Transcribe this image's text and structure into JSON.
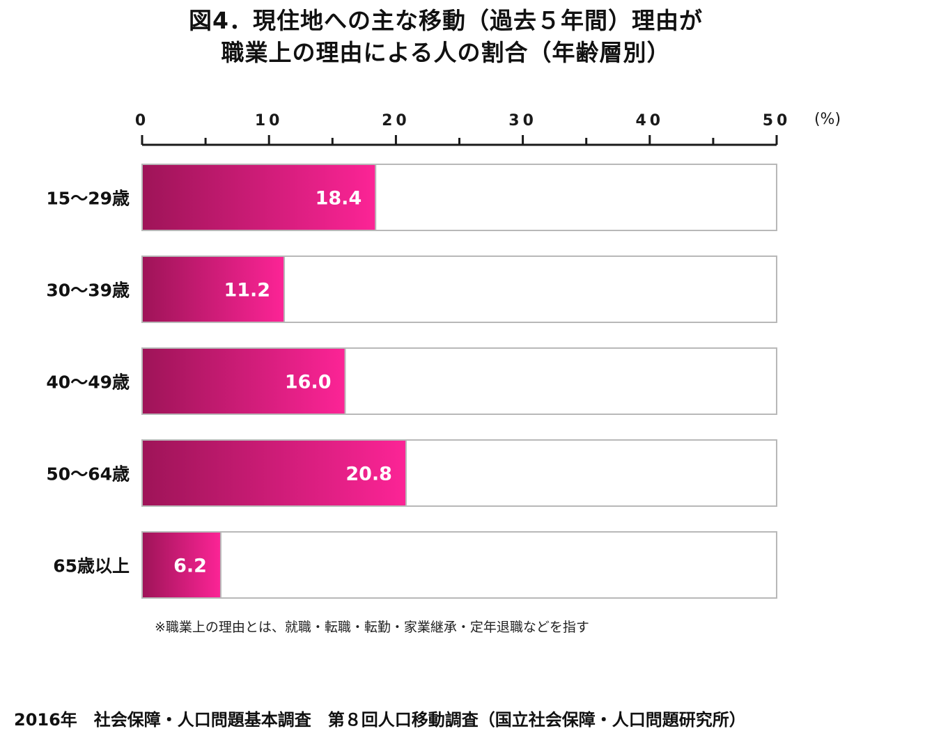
{
  "title_line1": "図4．現住地への主な移動（過去５年間）理由が",
  "title_line2": "職業上の理由による人の割合（年齢層別）",
  "note": "※職業上の理由とは、就職・転職・転勤・家業継承・定年退職などを指す",
  "source": "2016年　社会保障・人口問題基本調査　第８回人口移動調査（国立社会保障・人口問題研究所）",
  "colors": {
    "bar_dark": "#9e1458",
    "bar_light": "#fc2496",
    "bar_outline": "#b8b8b8",
    "axis": "#1a1a1a"
  },
  "chart_data": {
    "type": "bar",
    "orientation": "horizontal",
    "categories": [
      "15～29歳",
      "30～39歳",
      "40～49歳",
      "50～64歳",
      "65歳以上"
    ],
    "values": [
      18.4,
      11.2,
      16.0,
      20.8,
      6.2
    ],
    "value_labels": [
      "18.4",
      "11.2",
      "16.0",
      "20.8",
      "6.2"
    ],
    "xlim": [
      0,
      50
    ],
    "major_ticks": [
      0,
      10,
      20,
      30,
      40,
      50
    ],
    "minor_ticks": [
      5,
      15,
      25,
      35,
      45
    ],
    "tick_labels": [
      "0",
      "10",
      "20",
      "30",
      "40",
      "50"
    ],
    "unit_label": "(%)",
    "axis_position": "top",
    "grid": false,
    "legend": "none"
  }
}
